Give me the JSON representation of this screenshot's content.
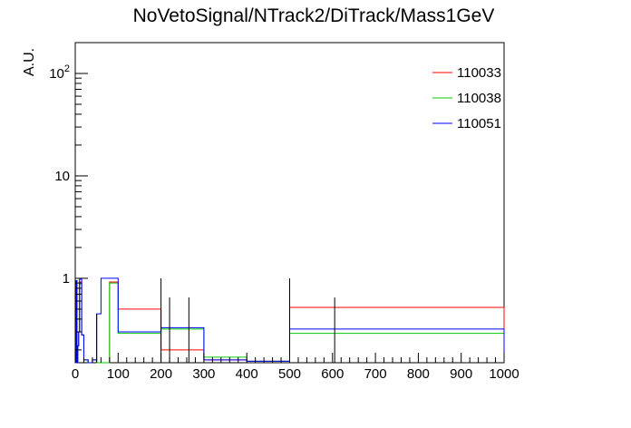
{
  "chart_data": {
    "type": "histogram",
    "title": "NoVetoSignal/NTrack2/DiTrack/Mass1GeV",
    "xlabel": "",
    "ylabel": "A.U.",
    "xlim": [
      0,
      1000
    ],
    "ylim": [
      0.15,
      200
    ],
    "ylog": true,
    "grid": false,
    "legend_position": "top-right",
    "x_ticks": [
      0,
      100,
      200,
      300,
      400,
      500,
      600,
      700,
      800,
      900,
      1000
    ],
    "y_ticks": [
      {
        "value": 1,
        "label": "1"
      },
      {
        "value": 10,
        "label": "10"
      },
      {
        "value": 100,
        "base": "10",
        "exp": "2"
      }
    ],
    "series": [
      {
        "name": "110033",
        "color": "#ff0000",
        "bins": [
          [
            0,
            2,
            0.15
          ],
          [
            2,
            4,
            0.95
          ],
          [
            4,
            6,
            0.15
          ],
          [
            6,
            8,
            0.22
          ],
          [
            8,
            10,
            0.3
          ],
          [
            10,
            15,
            0.92
          ],
          [
            15,
            20,
            0.28
          ],
          [
            20,
            30,
            0.16
          ],
          [
            30,
            40,
            0.15
          ],
          [
            40,
            50,
            0.16
          ],
          [
            50,
            60,
            0.15
          ],
          [
            60,
            80,
            0.15
          ],
          [
            80,
            100,
            0.92
          ],
          [
            100,
            200,
            0.5
          ],
          [
            200,
            300,
            0.2
          ],
          [
            300,
            400,
            0.16
          ],
          [
            400,
            500,
            0.155
          ],
          [
            500,
            1000,
            0.52
          ]
        ]
      },
      {
        "name": "110038",
        "color": "#00cc00",
        "bins": [
          [
            0,
            2,
            0.15
          ],
          [
            2,
            4,
            0.95
          ],
          [
            4,
            6,
            0.15
          ],
          [
            6,
            8,
            0.22
          ],
          [
            8,
            10,
            0.3
          ],
          [
            10,
            15,
            0.88
          ],
          [
            15,
            20,
            0.28
          ],
          [
            20,
            30,
            0.16
          ],
          [
            30,
            40,
            0.15
          ],
          [
            40,
            50,
            0.16
          ],
          [
            50,
            60,
            0.15
          ],
          [
            60,
            80,
            0.15
          ],
          [
            80,
            100,
            0.9
          ],
          [
            100,
            200,
            0.29
          ],
          [
            200,
            300,
            0.32
          ],
          [
            300,
            400,
            0.17
          ],
          [
            400,
            500,
            0.155
          ],
          [
            500,
            1000,
            0.29
          ]
        ]
      },
      {
        "name": "110051",
        "color": "#0000ff",
        "bins": [
          [
            0,
            2,
            0.15
          ],
          [
            2,
            4,
            0.95
          ],
          [
            4,
            6,
            0.15
          ],
          [
            6,
            8,
            0.22
          ],
          [
            8,
            10,
            0.3
          ],
          [
            10,
            15,
            0.98
          ],
          [
            15,
            20,
            0.28
          ],
          [
            20,
            30,
            0.16
          ],
          [
            30,
            40,
            0.15
          ],
          [
            40,
            50,
            0.16
          ],
          [
            50,
            60,
            0.45
          ],
          [
            60,
            80,
            1.0
          ],
          [
            80,
            100,
            1.0
          ],
          [
            100,
            200,
            0.3
          ],
          [
            200,
            300,
            0.33
          ],
          [
            300,
            400,
            0.16
          ],
          [
            400,
            500,
            0.155
          ],
          [
            500,
            1000,
            0.32
          ]
        ]
      }
    ],
    "error_bars": [
      {
        "x": 50,
        "low": 0.15,
        "high": 0.45
      },
      {
        "x": 200,
        "low": 0.15,
        "high": 1.0
      },
      {
        "x": 220,
        "low": 0.15,
        "high": 0.65
      },
      {
        "x": 265,
        "low": 0.15,
        "high": 0.65
      },
      {
        "x": 500,
        "low": 0.15,
        "high": 1.0
      },
      {
        "x": 605,
        "low": 0.15,
        "high": 0.65
      }
    ]
  }
}
